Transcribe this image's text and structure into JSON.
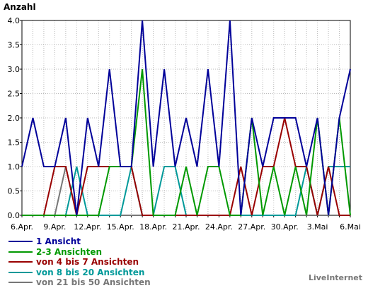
{
  "chart_data": {
    "type": "line",
    "title": "",
    "ylabel": "Anzahl",
    "xlabel": "",
    "ylim": [
      0,
      4
    ],
    "grid": true,
    "legend_position": "bottom-left",
    "yticks": [
      "0.0",
      "0.5",
      "1.0",
      "1.5",
      "2.0",
      "2.5",
      "3.0",
      "3.5",
      "4.0"
    ],
    "xtick_labels": [
      {
        "index": 0,
        "label": "6.Apr."
      },
      {
        "index": 3,
        "label": "9.Apr."
      },
      {
        "index": 6,
        "label": "12.Apr."
      },
      {
        "index": 9,
        "label": "15.Apr."
      },
      {
        "index": 12,
        "label": "18.Apr."
      },
      {
        "index": 15,
        "label": "21.Apr."
      },
      {
        "index": 18,
        "label": "24.Apr."
      },
      {
        "index": 21,
        "label": "27.Apr."
      },
      {
        "index": 24,
        "label": "30.Apr."
      },
      {
        "index": 27,
        "label": "3.Mai"
      },
      {
        "index": 30,
        "label": "6.Mai"
      }
    ],
    "x": [
      "6.Apr.",
      "7.Apr.",
      "8.Apr.",
      "9.Apr.",
      "10.Apr.",
      "11.Apr.",
      "12.Apr.",
      "13.Apr.",
      "14.Apr.",
      "15.Apr.",
      "16.Apr.",
      "17.Apr.",
      "18.Apr.",
      "19.Apr.",
      "20.Apr.",
      "21.Apr.",
      "22.Apr.",
      "23.Apr.",
      "24.Apr.",
      "25.Apr.",
      "26.Apr.",
      "27.Apr.",
      "28.Apr.",
      "29.Apr.",
      "30.Apr.",
      "1.Mai",
      "2.Mai",
      "3.Mai",
      "4.Mai",
      "5.Mai",
      "6.Mai"
    ],
    "series": [
      {
        "name": "1 Ansicht",
        "color": "#000099",
        "values": [
          1,
          2,
          1,
          1,
          2,
          0,
          2,
          1,
          3,
          1,
          1,
          4,
          1,
          3,
          1,
          2,
          1,
          3,
          1,
          4,
          0,
          2,
          1,
          2,
          2,
          2,
          1,
          2,
          0,
          2,
          3
        ]
      },
      {
        "name": "2-3 Ansichten",
        "color": "#009900",
        "values": [
          0,
          0,
          0,
          0,
          0,
          0,
          0,
          0,
          1,
          1,
          1,
          3,
          0,
          0,
          0,
          1,
          0,
          1,
          1,
          0,
          0,
          2,
          0,
          1,
          0,
          1,
          0,
          2,
          0,
          2,
          0
        ]
      },
      {
        "name": "von 4 bis 7 Ansichten",
        "color": "#990000",
        "values": [
          0,
          0,
          0,
          1,
          1,
          0,
          1,
          1,
          1,
          1,
          1,
          0,
          0,
          0,
          0,
          0,
          0,
          0,
          0,
          0,
          1,
          0,
          1,
          1,
          2,
          1,
          1,
          0,
          1,
          0,
          0
        ]
      },
      {
        "name": "von 8 bis 20 Ansichten",
        "color": "#009999",
        "values": [
          0,
          0,
          0,
          0,
          0,
          1,
          0,
          0,
          0,
          0,
          1,
          0,
          0,
          1,
          1,
          0,
          0,
          0,
          0,
          0,
          0,
          0,
          0,
          0,
          0,
          0,
          1,
          0,
          1,
          1,
          1
        ]
      },
      {
        "name": "von 21 bis 50 Ansichten",
        "color": "#777777",
        "values": [
          0,
          0,
          0,
          0,
          1,
          0,
          0,
          0,
          0,
          0,
          0,
          0,
          0,
          0,
          0,
          0,
          0,
          0,
          0,
          0,
          0,
          0,
          0,
          0,
          0,
          0,
          0,
          0,
          0,
          0,
          0
        ]
      }
    ]
  },
  "footer": {
    "brand": "LiveInternet"
  }
}
